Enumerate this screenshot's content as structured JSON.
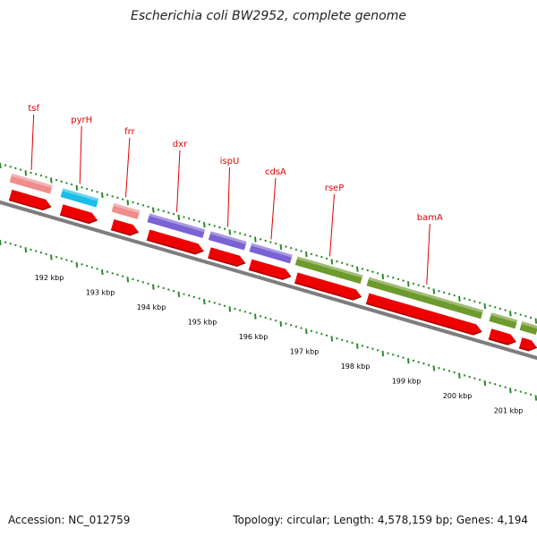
{
  "title": "Escherichia coli BW2952, complete genome",
  "footer": {
    "accession": "Accession: NC_012759",
    "stats": "Topology: circular; Length: 4,578,159 bp; Genes: 4,194"
  },
  "colors": {
    "gene_label": "#e00000",
    "cds_arrow": "#ee0000",
    "backbone": "#7d7d7d",
    "tick": "#2a8a2a",
    "tick_label": "#000000",
    "tsf": "#ef8c8c",
    "pyrH": "#19bde8",
    "frr": "#ef8c8c",
    "dxr": "#7a62d4",
    "ispU": "#7a62d4",
    "cdsA": "#7a62d4",
    "rseP": "#6d9a2c",
    "bamA": "#6d9a2c"
  },
  "genes": [
    {
      "name": "tsf",
      "start_kbp": 191.2,
      "end_kbp": 192.1
    },
    {
      "name": "pyrH",
      "start_kbp": 192.2,
      "end_kbp": 193.0
    },
    {
      "name": "frr",
      "start_kbp": 193.2,
      "end_kbp": 193.8
    },
    {
      "name": "dxr",
      "start_kbp": 193.9,
      "end_kbp": 195.1
    },
    {
      "name": "ispU",
      "start_kbp": 195.1,
      "end_kbp": 195.9
    },
    {
      "name": "cdsA",
      "start_kbp": 195.9,
      "end_kbp": 196.8
    },
    {
      "name": "rseP",
      "start_kbp": 196.8,
      "end_kbp": 198.2
    },
    {
      "name": "bamA",
      "start_kbp": 198.2,
      "end_kbp": 200.6
    },
    {
      "name": "",
      "start_kbp": 200.6,
      "end_kbp": 201.2
    },
    {
      "name": "",
      "start_kbp": 201.2,
      "end_kbp": 201.6
    }
  ],
  "cds_arrows": [
    {
      "start_kbp": 191.2,
      "end_kbp": 192.1
    },
    {
      "start_kbp": 192.2,
      "end_kbp": 193.0
    },
    {
      "start_kbp": 193.2,
      "end_kbp": 193.8
    },
    {
      "start_kbp": 193.9,
      "end_kbp": 195.1
    },
    {
      "start_kbp": 195.1,
      "end_kbp": 195.9
    },
    {
      "start_kbp": 195.9,
      "end_kbp": 196.8
    },
    {
      "start_kbp": 196.8,
      "end_kbp": 198.2
    },
    {
      "start_kbp": 198.2,
      "end_kbp": 200.6
    },
    {
      "start_kbp": 200.6,
      "end_kbp": 201.2
    },
    {
      "start_kbp": 201.2,
      "end_kbp": 201.6
    }
  ],
  "tick_labels": [
    "192 kbp",
    "193 kbp",
    "194 kbp",
    "195 kbp",
    "196 kbp",
    "197 kbp",
    "198 kbp",
    "199 kbp",
    "200 kbp",
    "201 kbp"
  ]
}
